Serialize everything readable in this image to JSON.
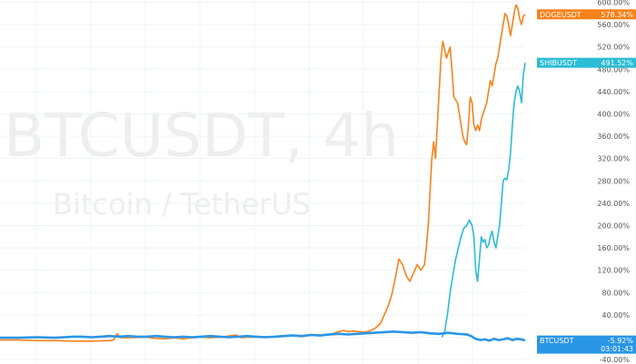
{
  "watermark": {
    "symbol": "BTCUSDT, 4h",
    "description": "Bitcoin / TetherUS"
  },
  "chart_data": {
    "type": "line",
    "ylim": [
      -48,
      604
    ],
    "y_ticks": [
      600,
      560,
      520,
      480,
      440,
      400,
      360,
      320,
      280,
      240,
      200,
      160,
      120,
      80,
      40,
      0,
      -40
    ],
    "y_tick_labels": [
      "600.00%",
      "560.00%",
      "520.00%",
      "480.00%",
      "440.00%",
      "400.00%",
      "360.00%",
      "320.00%",
      "280.00%",
      "240.00%",
      "200.00%",
      "160.00%",
      "120.00%",
      "80.00%",
      "40.00%",
      "",
      "-40.00%"
    ],
    "grid": true,
    "legend": "price tags on right axis",
    "series": [
      {
        "name": "DOGEUSDT",
        "color": "#f7821b",
        "label_value": "578.34%",
        "points": [
          [
            0,
            -5
          ],
          [
            20,
            -5
          ],
          [
            40,
            -6
          ],
          [
            60,
            -6
          ],
          [
            80,
            -7
          ],
          [
            100,
            -7
          ],
          [
            120,
            -6
          ],
          [
            124,
            -5
          ],
          [
            128,
            6
          ],
          [
            132,
            -1
          ],
          [
            140,
            -1
          ],
          [
            160,
            0
          ],
          [
            170,
            -2
          ],
          [
            180,
            -3
          ],
          [
            190,
            -1
          ],
          [
            200,
            -3
          ],
          [
            210,
            -1
          ],
          [
            220,
            0
          ],
          [
            230,
            -1
          ],
          [
            240,
            0
          ],
          [
            250,
            2
          ],
          [
            258,
            4
          ],
          [
            264,
            -1
          ],
          [
            270,
            0
          ],
          [
            280,
            0
          ],
          [
            290,
            1
          ],
          [
            300,
            1
          ],
          [
            310,
            2
          ],
          [
            320,
            3
          ],
          [
            330,
            1
          ],
          [
            340,
            5
          ],
          [
            350,
            4
          ],
          [
            360,
            4
          ],
          [
            370,
            10
          ],
          [
            376,
            12
          ],
          [
            380,
            10
          ],
          [
            386,
            11
          ],
          [
            392,
            10
          ],
          [
            398,
            9
          ],
          [
            404,
            11
          ],
          [
            410,
            16
          ],
          [
            416,
            25
          ],
          [
            420,
            40
          ],
          [
            424,
            55
          ],
          [
            428,
            75
          ],
          [
            432,
            105
          ],
          [
            436,
            140
          ],
          [
            440,
            130
          ],
          [
            444,
            110
          ],
          [
            448,
            100
          ],
          [
            452,
            115
          ],
          [
            456,
            130
          ],
          [
            460,
            120
          ],
          [
            464,
            130
          ],
          [
            466,
            160
          ],
          [
            468,
            200
          ],
          [
            470,
            260
          ],
          [
            472,
            320
          ],
          [
            474,
            350
          ],
          [
            476,
            320
          ],
          [
            478,
            380
          ],
          [
            480,
            440
          ],
          [
            482,
            500
          ],
          [
            484,
            530
          ],
          [
            488,
            500
          ],
          [
            492,
            520
          ],
          [
            494,
            480
          ],
          [
            496,
            430
          ],
          [
            500,
            420
          ],
          [
            502,
            400
          ],
          [
            504,
            380
          ],
          [
            506,
            360
          ],
          [
            508,
            350
          ],
          [
            510,
            345
          ],
          [
            512,
            380
          ],
          [
            514,
            430
          ],
          [
            516,
            420
          ],
          [
            518,
            380
          ],
          [
            520,
            370
          ],
          [
            522,
            380
          ],
          [
            524,
            370
          ],
          [
            526,
            390
          ],
          [
            528,
            400
          ],
          [
            530,
            410
          ],
          [
            532,
            420
          ],
          [
            534,
            440
          ],
          [
            536,
            460
          ],
          [
            538,
            450
          ],
          [
            540,
            470
          ],
          [
            542,
            490
          ],
          [
            544,
            500
          ],
          [
            546,
            520
          ],
          [
            548,
            540
          ],
          [
            550,
            560
          ],
          [
            552,
            580
          ],
          [
            554,
            575
          ],
          [
            556,
            560
          ],
          [
            558,
            540
          ],
          [
            560,
            560
          ],
          [
            562,
            580
          ],
          [
            564,
            595
          ],
          [
            566,
            590
          ],
          [
            568,
            570
          ],
          [
            570,
            560
          ],
          [
            572,
            575
          ],
          [
            574,
            578.34
          ]
        ]
      },
      {
        "name": "SHIBUSDT",
        "color": "#2bbcd6",
        "label_value": "491.52%",
        "points": [
          [
            483,
            0
          ],
          [
            486,
            10
          ],
          [
            489,
            40
          ],
          [
            492,
            80
          ],
          [
            495,
            110
          ],
          [
            498,
            140
          ],
          [
            501,
            160
          ],
          [
            504,
            180
          ],
          [
            507,
            195
          ],
          [
            510,
            200
          ],
          [
            513,
            210
          ],
          [
            516,
            200
          ],
          [
            518,
            180
          ],
          [
            520,
            120
          ],
          [
            522,
            100
          ],
          [
            524,
            140
          ],
          [
            526,
            180
          ],
          [
            528,
            170
          ],
          [
            530,
            175
          ],
          [
            532,
            160
          ],
          [
            534,
            165
          ],
          [
            536,
            180
          ],
          [
            538,
            190
          ],
          [
            540,
            170
          ],
          [
            542,
            160
          ],
          [
            544,
            180
          ],
          [
            546,
            200
          ],
          [
            548,
            240
          ],
          [
            550,
            280
          ],
          [
            552,
            285
          ],
          [
            554,
            282
          ],
          [
            556,
            300
          ],
          [
            558,
            330
          ],
          [
            560,
            380
          ],
          [
            562,
            420
          ],
          [
            564,
            440
          ],
          [
            566,
            450
          ],
          [
            568,
            440
          ],
          [
            570,
            420
          ],
          [
            572,
            470
          ],
          [
            574,
            491.52
          ]
        ]
      },
      {
        "name": "BTCUSDT",
        "color": "#2a96e6",
        "label_value": "-5.92%",
        "label_sub": "03:01:43",
        "points": [
          [
            0,
            -1
          ],
          [
            20,
            -1
          ],
          [
            40,
            0
          ],
          [
            60,
            -1
          ],
          [
            70,
            0
          ],
          [
            80,
            1
          ],
          [
            90,
            1
          ],
          [
            100,
            0
          ],
          [
            110,
            1
          ],
          [
            120,
            2
          ],
          [
            130,
            1
          ],
          [
            140,
            2
          ],
          [
            150,
            1
          ],
          [
            160,
            1
          ],
          [
            170,
            2
          ],
          [
            180,
            1
          ],
          [
            190,
            0
          ],
          [
            200,
            1
          ],
          [
            210,
            0
          ],
          [
            220,
            1
          ],
          [
            230,
            2
          ],
          [
            240,
            1
          ],
          [
            250,
            0
          ],
          [
            260,
            1
          ],
          [
            270,
            2
          ],
          [
            280,
            1
          ],
          [
            290,
            0
          ],
          [
            300,
            1
          ],
          [
            310,
            2
          ],
          [
            320,
            3
          ],
          [
            330,
            2
          ],
          [
            340,
            4
          ],
          [
            350,
            3
          ],
          [
            360,
            5
          ],
          [
            370,
            6
          ],
          [
            380,
            5
          ],
          [
            390,
            6
          ],
          [
            400,
            7
          ],
          [
            410,
            8
          ],
          [
            420,
            9
          ],
          [
            430,
            10
          ],
          [
            440,
            9
          ],
          [
            450,
            8
          ],
          [
            460,
            9
          ],
          [
            470,
            7
          ],
          [
            480,
            6
          ],
          [
            490,
            8
          ],
          [
            500,
            6
          ],
          [
            510,
            5
          ],
          [
            515,
            2
          ],
          [
            520,
            -3
          ],
          [
            525,
            -5
          ],
          [
            530,
            -4
          ],
          [
            535,
            -6
          ],
          [
            540,
            -3
          ],
          [
            545,
            -5
          ],
          [
            550,
            -4
          ],
          [
            555,
            -2
          ],
          [
            560,
            -5
          ],
          [
            565,
            -3
          ],
          [
            570,
            -4
          ],
          [
            574,
            -5.92
          ]
        ]
      }
    ]
  }
}
